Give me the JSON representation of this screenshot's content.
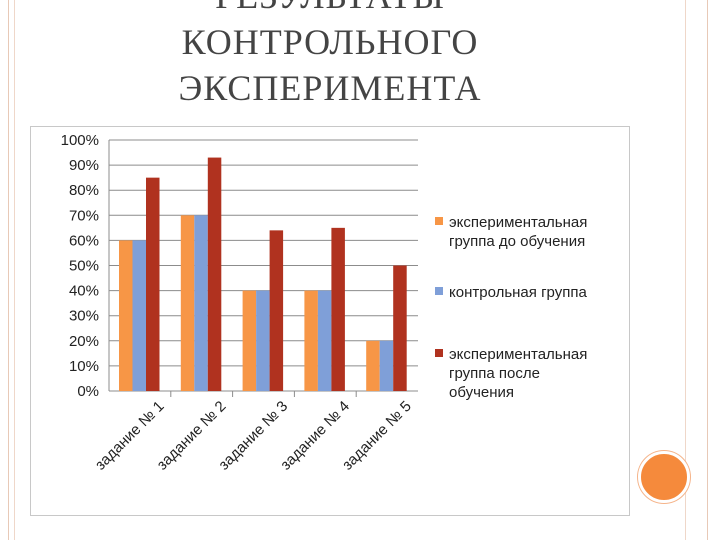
{
  "title": {
    "line1": "РЕЗУЛЬТАТЫ",
    "line2": "КОНТРОЛЬНОГО",
    "line3": "ЭКСПЕРИМЕНТА"
  },
  "chart_data": {
    "type": "bar",
    "categories": [
      "задание № 1",
      "задание № 2",
      "задание № 3",
      "задание № 4",
      "задание № 5"
    ],
    "series": [
      {
        "name": "экспериментальная группа до обучения",
        "values": [
          60,
          70,
          40,
          40,
          20
        ],
        "color": "#f79646"
      },
      {
        "name": "контрольная группа",
        "values": [
          60,
          70,
          40,
          40,
          20
        ],
        "color": "#7f9fd8"
      },
      {
        "name": "экспериментальная группа после обучения",
        "values": [
          85,
          93,
          64,
          65,
          50
        ],
        "color": "#b0321f"
      }
    ],
    "y_ticks": [
      "0%",
      "10%",
      "20%",
      "30%",
      "40%",
      "50%",
      "60%",
      "70%",
      "80%",
      "90%",
      "100%"
    ],
    "ylim": [
      0,
      100
    ],
    "grid": true,
    "legend_position": "right",
    "legend_lines": [
      [
        "экспериментальная",
        "группа до обучения"
      ],
      [
        "контрольная группа"
      ],
      [
        "экспериментальная",
        "группа после",
        "обучения"
      ]
    ]
  }
}
